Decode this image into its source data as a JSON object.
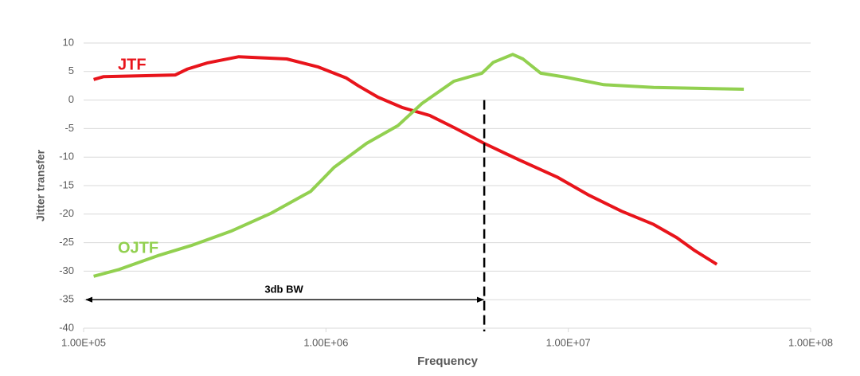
{
  "chart_data": {
    "type": "line",
    "x_label": "Frequency",
    "y_label": "Jitter transfer",
    "xscale": "log",
    "xlim": [
      100000,
      100000000
    ],
    "xticks": [
      {
        "value": 100000,
        "label": "1.00E+05"
      },
      {
        "value": 1000000,
        "label": "1.00E+06"
      },
      {
        "value": 10000000,
        "label": "1.00E+07"
      },
      {
        "value": 100000000,
        "label": "1.00E+08"
      }
    ],
    "ylim": [
      -40,
      10
    ],
    "yticks": [
      -40,
      -35,
      -30,
      -25,
      -20,
      -15,
      -10,
      -5,
      0,
      5,
      10
    ],
    "grid": true,
    "series": [
      {
        "name": "JTF",
        "color": "#e8141b",
        "x": [
          110000,
          121000,
          239000,
          267000,
          323000,
          437000,
          689000,
          930000,
          1210000,
          1360000,
          1640000,
          2060000,
          2680000,
          3370000,
          4500000,
          6200000,
          9000000,
          12200000,
          16600000,
          22500000,
          28000000,
          33000000,
          41000000
        ],
        "values": [
          3.6,
          4.1,
          4.4,
          5.4,
          6.5,
          7.6,
          7.2,
          5.8,
          3.9,
          2.5,
          0.5,
          -1.3,
          -2.7,
          -4.8,
          -7.6,
          -10.4,
          -13.5,
          -16.7,
          -19.5,
          -21.8,
          -24.1,
          -26.3,
          -28.8
        ]
      },
      {
        "name": "OJTF",
        "color": "#92d050",
        "x": [
          110000,
          140000,
          205000,
          278000,
          405000,
          590000,
          865000,
          1080000,
          1470000,
          1980000,
          2490000,
          3370000,
          4400000,
          4900000,
          5900000,
          6500000,
          7700000,
          9800000,
          14000000,
          22500000,
          53000000
        ],
        "values": [
          -30.9,
          -29.7,
          -27.2,
          -25.5,
          -23.0,
          -19.9,
          -16.0,
          -11.8,
          -7.6,
          -4.5,
          -0.6,
          3.3,
          4.7,
          6.6,
          8.0,
          7.2,
          4.7,
          4.0,
          2.7,
          2.2,
          1.9
        ]
      }
    ],
    "annotations": [
      {
        "text": "3db BW",
        "x": 4500000,
        "y": -35
      }
    ]
  }
}
